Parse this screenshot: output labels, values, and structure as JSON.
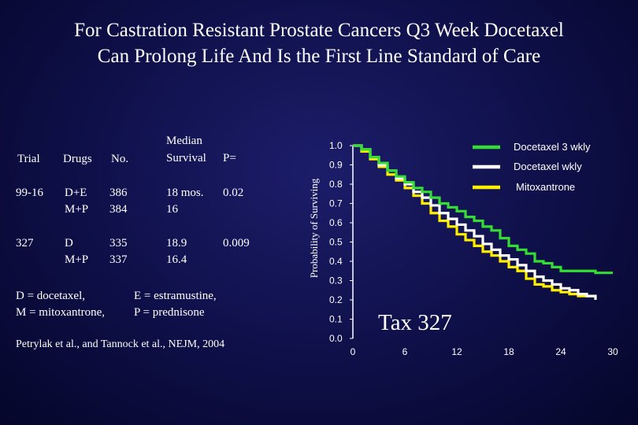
{
  "title_line1": "For Castration Resistant Prostate Cancers Q3 Week Docetaxel",
  "title_line2": "Can Prolong Life And Is the First Line Standard of Care",
  "table": {
    "header_trial": "Trial",
    "header_drugs": "Drugs",
    "header_no": "No.",
    "header_median_1": "Median",
    "header_median_2": "Survival",
    "header_p": "P=",
    "rows": [
      {
        "trial": "99-16",
        "drugs": [
          "D+E",
          "M+P"
        ],
        "no": [
          "386",
          "384"
        ],
        "median": [
          "18 mos.",
          "16"
        ],
        "p": "0.02"
      },
      {
        "trial": "327",
        "drugs": [
          "D",
          "M+P"
        ],
        "no": [
          "335",
          "337"
        ],
        "median": [
          "18.9",
          "16.4"
        ],
        "p": "0.009"
      }
    ],
    "footnote_1a": "D = docetaxel,",
    "footnote_1b": "E = estramustine,",
    "footnote_2a": "M = mitoxantrone,",
    "footnote_2b": "P = prednisone",
    "reference": "Petrylak et al., and Tannock et al., NEJM, 2004"
  },
  "chart_data": {
    "type": "line",
    "title": "Tax 327",
    "xlabel": "",
    "ylabel": "Probability of Surviving",
    "xlim": [
      0,
      30
    ],
    "ylim": [
      0,
      1
    ],
    "x_ticks": [
      "0",
      "6",
      "12",
      "18",
      "24",
      "30"
    ],
    "y_ticks": [
      "0.0",
      "0.1",
      "0.2",
      "0.3",
      "0.4",
      "0.5",
      "0.6",
      "0.7",
      "0.8",
      "0.9",
      "1.0"
    ],
    "legend_position": "top-right",
    "series": [
      {
        "name": "Docetaxel 3 wkly",
        "color": "#33dd33",
        "x": [
          0,
          1,
          2,
          3,
          4,
          5,
          6,
          7,
          8,
          9,
          10,
          11,
          12,
          13,
          14,
          15,
          16,
          17,
          18,
          19,
          20,
          21,
          22,
          23,
          24,
          25,
          26,
          27,
          28,
          29,
          30
        ],
        "y": [
          1.0,
          0.98,
          0.94,
          0.91,
          0.87,
          0.84,
          0.81,
          0.78,
          0.76,
          0.73,
          0.7,
          0.68,
          0.66,
          0.63,
          0.61,
          0.58,
          0.56,
          0.52,
          0.48,
          0.46,
          0.44,
          0.4,
          0.39,
          0.37,
          0.35,
          0.35,
          0.35,
          0.35,
          0.34,
          0.34,
          0.34
        ]
      },
      {
        "name": "Docetaxel wkly",
        "color": "#ffffff",
        "x": [
          0,
          1,
          2,
          3,
          4,
          5,
          6,
          7,
          8,
          9,
          10,
          11,
          12,
          13,
          14,
          15,
          16,
          17,
          18,
          19,
          20,
          21,
          22,
          23,
          24,
          25,
          26,
          27,
          28
        ],
        "y": [
          1.0,
          0.98,
          0.94,
          0.9,
          0.87,
          0.83,
          0.8,
          0.76,
          0.73,
          0.69,
          0.65,
          0.62,
          0.59,
          0.56,
          0.53,
          0.49,
          0.46,
          0.43,
          0.41,
          0.38,
          0.35,
          0.32,
          0.3,
          0.28,
          0.26,
          0.25,
          0.23,
          0.22,
          0.2
        ]
      },
      {
        "name": "Mitoxantrone",
        "color": "#ffee00",
        "x": [
          0,
          1,
          2,
          3,
          4,
          5,
          6,
          7,
          8,
          9,
          10,
          11,
          12,
          13,
          14,
          15,
          16,
          17,
          18,
          19,
          20,
          21,
          22,
          23,
          24,
          25,
          26,
          27,
          28
        ],
        "y": [
          1.0,
          0.97,
          0.93,
          0.89,
          0.85,
          0.82,
          0.78,
          0.74,
          0.7,
          0.65,
          0.61,
          0.58,
          0.54,
          0.51,
          0.48,
          0.45,
          0.43,
          0.4,
          0.37,
          0.35,
          0.31,
          0.28,
          0.27,
          0.25,
          0.24,
          0.23,
          0.22,
          0.22,
          0.22
        ]
      }
    ]
  }
}
